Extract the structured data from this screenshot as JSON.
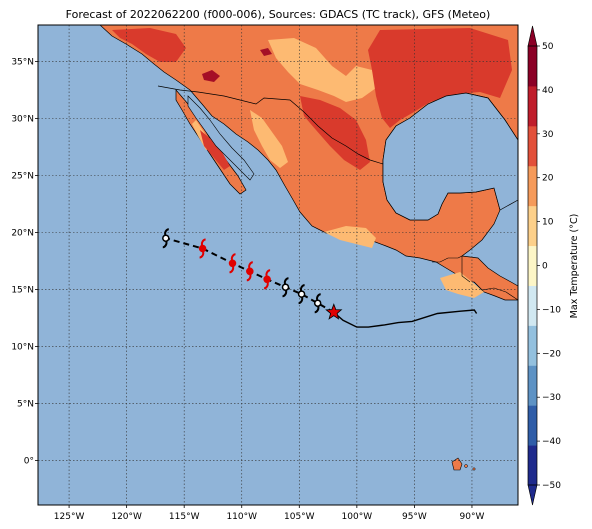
{
  "title": "Forecast of 2022062200 (f000-006), Sources: GDACS (TC track), GFS (Meteo)",
  "lon_ticks": [
    "125°W",
    "120°W",
    "115°W",
    "110°W",
    "105°W",
    "100°W",
    "95°W",
    "90°W"
  ],
  "lon_values": [
    -125,
    -120,
    -115,
    -110,
    -105,
    -100,
    -95,
    -90
  ],
  "lat_ticks": [
    "35°N",
    "30°N",
    "25°N",
    "20°N",
    "15°N",
    "10°N",
    "5°N",
    "0°"
  ],
  "lat_values": [
    35,
    30,
    25,
    20,
    15,
    10,
    5,
    0
  ],
  "extent": {
    "lon_min": -127.7,
    "lon_max": -86.0,
    "lat_min": -3.9,
    "lat_max": 38.2
  },
  "colorbar": {
    "label": "Max Temperature (°C)",
    "ticks": [
      "50",
      "40",
      "30",
      "20",
      "10",
      "0",
      "−10",
      "−20",
      "−30",
      "−40",
      "−50"
    ],
    "values": [
      50,
      40,
      30,
      20,
      10,
      0,
      -10,
      -20,
      -30,
      -40,
      -50
    ],
    "colors": [
      "#1e2a8c",
      "#2f5da8",
      "#5d92c4",
      "#93c0de",
      "#d1e8f1",
      "#fdf6c7",
      "#fdd08a",
      "#f59a5a",
      "#e2503a",
      "#bf1d2b",
      "#8b0026"
    ]
  },
  "colors": {
    "ocean": "#90b4d8",
    "land_hot": "#ee7a48",
    "land_warm": "#fdba72",
    "land_very_hot": "#d93a2c",
    "land_extreme": "#a50f26",
    "track": "#000000",
    "storm_forecast": "#e00000",
    "current_position": "#e00000"
  },
  "track": {
    "past_path": [
      [
        -102,
        13
      ],
      [
        -101.2,
        12.3
      ],
      [
        -100,
        11.7
      ],
      [
        -99,
        11.7
      ],
      [
        -97.6,
        11.9
      ],
      [
        -96.4,
        12.1
      ],
      [
        -95.2,
        12.2
      ],
      [
        -93,
        12.9
      ],
      [
        -91,
        13.1
      ],
      [
        -89.8,
        13.2
      ],
      [
        -89.6,
        12.9
      ]
    ],
    "forecast_path": [
      [
        -102,
        13
      ],
      [
        -103.4,
        13.8
      ],
      [
        -104.8,
        14.6
      ],
      [
        -106.2,
        15.2
      ],
      [
        -107.8,
        15.9
      ],
      [
        -109.3,
        16.6
      ],
      [
        -110.8,
        17.3
      ],
      [
        -113.4,
        18.6
      ],
      [
        -116.6,
        19.5
      ]
    ],
    "storms": [
      {
        "lon": -103.4,
        "lat": 13.8,
        "color": "white"
      },
      {
        "lon": -104.8,
        "lat": 14.6,
        "color": "white"
      },
      {
        "lon": -106.2,
        "lat": 15.2,
        "color": "white"
      },
      {
        "lon": -107.8,
        "lat": 15.9,
        "color": "red"
      },
      {
        "lon": -109.3,
        "lat": 16.6,
        "color": "red"
      },
      {
        "lon": -110.8,
        "lat": 17.3,
        "color": "red"
      },
      {
        "lon": -113.4,
        "lat": 18.6,
        "color": "red"
      },
      {
        "lon": -116.6,
        "lat": 19.5,
        "color": "white"
      }
    ],
    "current": {
      "lon": -102,
      "lat": 13
    }
  }
}
